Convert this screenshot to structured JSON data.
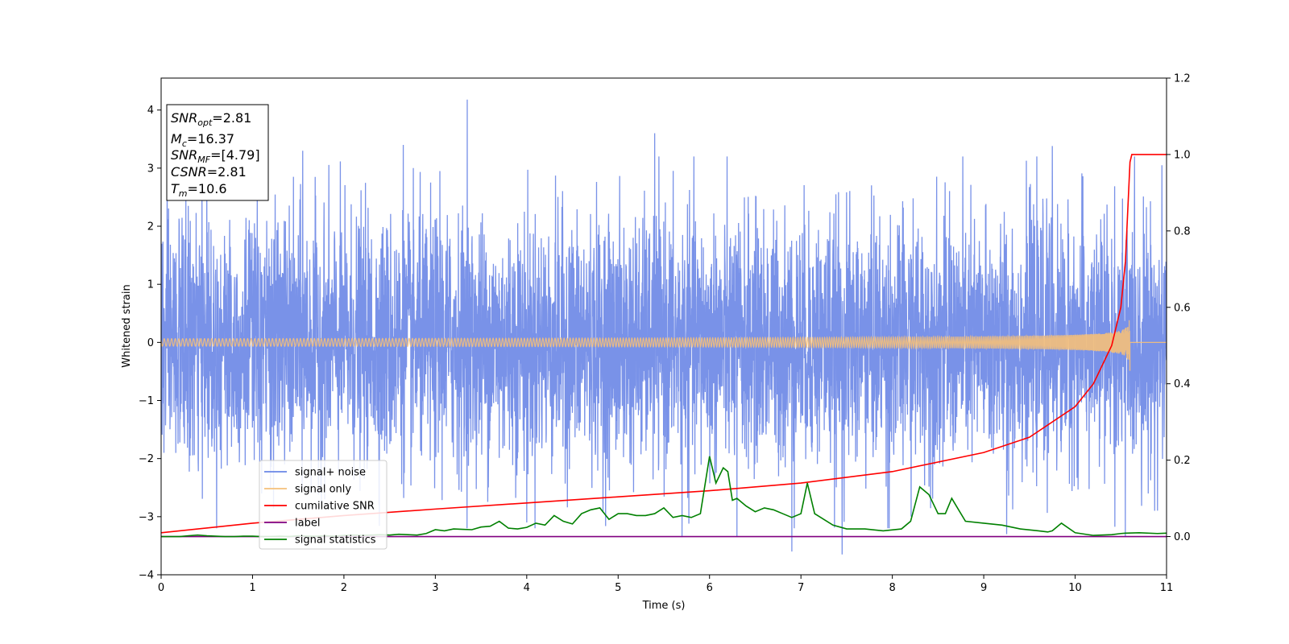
{
  "chart_data": {
    "type": "line",
    "xlabel": "Time (s)",
    "ylabel": "Whitened strain",
    "xlim": [
      0,
      11
    ],
    "ylim": [
      -4,
      4.55
    ],
    "y2lim": [
      -0.1,
      1.2
    ],
    "x_ticks": [
      0,
      1,
      2,
      3,
      4,
      5,
      6,
      7,
      8,
      9,
      10,
      11
    ],
    "y_ticks": [
      -4,
      -3,
      -2,
      -1,
      0,
      1,
      2,
      3,
      4
    ],
    "y2_ticks": [
      0.0,
      0.2,
      0.4,
      0.6,
      0.8,
      1.0,
      1.2
    ],
    "x_tick_labels": [
      "0",
      "1",
      "2",
      "3",
      "4",
      "5",
      "6",
      "7",
      "8",
      "9",
      "10",
      "11"
    ],
    "y_tick_labels": [
      "−4",
      "−3",
      "−2",
      "−1",
      "0",
      "1",
      "2",
      "3",
      "4"
    ],
    "y2_tick_labels": [
      "0.0",
      "0.2",
      "0.4",
      "0.6",
      "0.8",
      "1.0",
      "1.2"
    ],
    "grid": false,
    "legend_position": "lower-left",
    "annotation": {
      "lines": [
        {
          "main": "SNR",
          "sub": "opt",
          "value": "=2.81"
        },
        {
          "main": "M",
          "sub": "c",
          "value": "=16.37"
        },
        {
          "main": "SNR",
          "sub": "MF",
          "value": "=[4.79]"
        },
        {
          "main": "CSNR",
          "sub": "",
          "value": "=2.81"
        },
        {
          "main": "T",
          "sub": "m",
          "value": "=10.6"
        }
      ]
    },
    "series": [
      {
        "name": "signal+ noise",
        "color": "#6a86e6",
        "axis": "left",
        "kind": "noise",
        "std": 1.05,
        "x_range": [
          0,
          11
        ],
        "spike_x": [
          0.03,
          0.5,
          1.1,
          1.55,
          2.65,
          3.05,
          3.35,
          4.0,
          5.4,
          5.7,
          6.3,
          6.9,
          7.45,
          7.95,
          9.25,
          9.75,
          10.55,
          10.95
        ],
        "spike_y": [
          -1.9,
          3.2,
          -2.6,
          3.3,
          3.4,
          2.95,
          4.18,
          -3.1,
          3.6,
          -3.35,
          -3.35,
          -3.6,
          -3.65,
          -3.2,
          -3.3,
          3.38,
          -3.35,
          3.05
        ]
      },
      {
        "name": "signal only",
        "color": "#f5c07a",
        "axis": "left",
        "kind": "chirp",
        "x_range": [
          0,
          10.6
        ],
        "merger_time": 10.6,
        "peak_amplitude": 0.5
      },
      {
        "name": "cumilative SNR",
        "color": "#ff0000",
        "axis": "right",
        "x": [
          0,
          1,
          2,
          3,
          4,
          5,
          6,
          7,
          8,
          9,
          9.5,
          10,
          10.2,
          10.4,
          10.5,
          10.55,
          10.6,
          10.62,
          11
        ],
        "y": [
          0.01,
          0.035,
          0.055,
          0.072,
          0.088,
          0.104,
          0.12,
          0.14,
          0.17,
          0.22,
          0.26,
          0.34,
          0.4,
          0.5,
          0.6,
          0.72,
          0.98,
          1.0,
          1.0
        ]
      },
      {
        "name": "label",
        "color": "#800080",
        "axis": "right",
        "x": [
          0,
          11
        ],
        "y": [
          0,
          0
        ]
      },
      {
        "name": "signal statistics",
        "color": "#008000",
        "axis": "right",
        "x": [
          0,
          0.1,
          0.2,
          0.3,
          0.4,
          0.5,
          0.6,
          0.7,
          0.8,
          0.9,
          1.0,
          1.1,
          1.2,
          1.3,
          1.4,
          1.5,
          1.6,
          1.7,
          1.8,
          1.9,
          2.0,
          2.1,
          2.2,
          2.3,
          2.4,
          2.5,
          2.6,
          2.7,
          2.8,
          2.9,
          3.0,
          3.1,
          3.2,
          3.3,
          3.4,
          3.5,
          3.6,
          3.7,
          3.8,
          3.9,
          4.0,
          4.1,
          4.2,
          4.3,
          4.4,
          4.5,
          4.6,
          4.7,
          4.8,
          4.9,
          5.0,
          5.1,
          5.2,
          5.3,
          5.4,
          5.5,
          5.6,
          5.7,
          5.8,
          5.9,
          6.0,
          6.07,
          6.15,
          6.2,
          6.25,
          6.3,
          6.4,
          6.5,
          6.6,
          6.7,
          6.8,
          6.9,
          7.0,
          7.07,
          7.15,
          7.25,
          7.35,
          7.5,
          7.7,
          7.9,
          8.1,
          8.2,
          8.3,
          8.4,
          8.5,
          8.58,
          8.65,
          8.8,
          9.0,
          9.2,
          9.4,
          9.6,
          9.7,
          9.75,
          9.85,
          10.0,
          10.2,
          10.4,
          10.5,
          10.55,
          10.7,
          10.9,
          11.0
        ],
        "y": [
          0.0,
          0.0,
          0.0,
          0.002,
          0.004,
          0.002,
          0.001,
          0.0,
          0.0,
          0.001,
          0.001,
          0.0,
          0.0,
          0.001,
          0.0,
          0.002,
          0.001,
          0.001,
          0.002,
          0.001,
          0.003,
          0.004,
          0.003,
          0.004,
          0.005,
          0.004,
          0.006,
          0.005,
          0.004,
          0.008,
          0.018,
          0.015,
          0.02,
          0.019,
          0.018,
          0.025,
          0.027,
          0.04,
          0.022,
          0.02,
          0.024,
          0.035,
          0.03,
          0.055,
          0.04,
          0.033,
          0.06,
          0.07,
          0.075,
          0.045,
          0.06,
          0.06,
          0.055,
          0.055,
          0.06,
          0.075,
          0.05,
          0.055,
          0.05,
          0.06,
          0.21,
          0.14,
          0.18,
          0.17,
          0.095,
          0.1,
          0.08,
          0.065,
          0.075,
          0.07,
          0.06,
          0.05,
          0.06,
          0.14,
          0.06,
          0.045,
          0.03,
          0.02,
          0.02,
          0.015,
          0.02,
          0.04,
          0.13,
          0.11,
          0.06,
          0.06,
          0.1,
          0.04,
          0.035,
          0.03,
          0.02,
          0.015,
          0.012,
          0.015,
          0.035,
          0.01,
          0.003,
          0.005,
          0.008,
          0.009,
          0.01,
          0.008,
          0.009
        ]
      }
    ]
  }
}
